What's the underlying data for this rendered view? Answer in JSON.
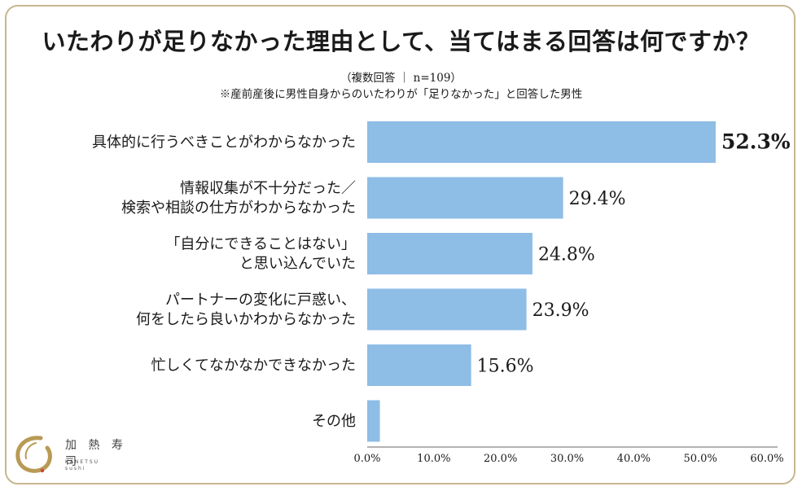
{
  "header": {
    "title": "いたわりが足りなかった理由として、当てはまる回答は何ですか？",
    "subtitle": "（複数回答 ｜ n=109）",
    "note": "※産前産後に男性自身からのいたわりが「足りなかった」と回答した男性"
  },
  "chart_data": {
    "type": "bar",
    "orientation": "horizontal",
    "categories": [
      [
        "具体的に行うべきことがわからなかった"
      ],
      [
        "情報収集が不十分だった／",
        "検索や相談の仕方がわからなかった"
      ],
      [
        "「自分にできることはない」",
        "と思い込んでいた"
      ],
      [
        "パートナーの変化に戸惑い、",
        "何をしたら良いかわからなかった"
      ],
      [
        "忙しくてなかなかできなかった"
      ],
      [
        "その他"
      ]
    ],
    "values": [
      52.3,
      29.4,
      24.8,
      23.9,
      15.6,
      1.9
    ],
    "value_labels": [
      "52.3%",
      "29.4%",
      "24.8%",
      "23.9%",
      "15.6%",
      ""
    ],
    "xlim": [
      0,
      60
    ],
    "ticks": [
      "0.0%",
      "10.0%",
      "20.0%",
      "30.0%",
      "40.0%",
      "50.0%",
      "60.0%"
    ],
    "grid": false,
    "bar_color": "#8ebde6"
  },
  "logo": {
    "name": "加 熱 寿 司",
    "roman_1": "KANETSU",
    "roman_2": "sushi"
  },
  "colors": {
    "frame": "#c8b690",
    "bar": "#8ebde6",
    "logo_gold": "#b99a55"
  }
}
